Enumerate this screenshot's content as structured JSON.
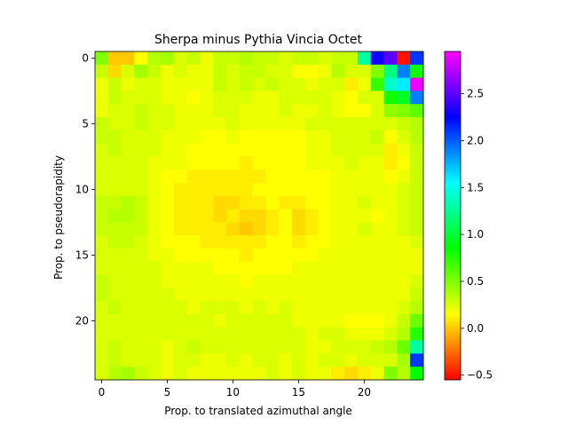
{
  "chart_data": {
    "type": "heatmap",
    "title": "Sherpa minus Pythia Vincia Octet",
    "xlabel": "Prop. to translated azimuthal angle",
    "ylabel": "Prop. to pseudorapidity",
    "n_cols": 25,
    "n_rows": 25,
    "xticks": [
      0,
      5,
      10,
      15,
      20
    ],
    "yticks": [
      0,
      5,
      10,
      15,
      20
    ],
    "colorbar": {
      "min": -0.55,
      "max": 2.95,
      "ticks": [
        -0.5,
        0.0,
        0.5,
        1.0,
        1.5,
        2.0,
        2.5
      ],
      "tick_labels": [
        "−0.5",
        "0.0",
        "0.5",
        "1.0",
        "1.5",
        "2.0",
        "2.5"
      ],
      "colormap": "gist_rainbow_r"
    },
    "values": [
      [
        0.5,
        0.0,
        0.0,
        0.15,
        0.35,
        0.4,
        0.25,
        0.3,
        0.2,
        0.3,
        0.3,
        0.35,
        0.3,
        0.3,
        0.25,
        0.3,
        0.3,
        0.25,
        0.3,
        0.3,
        1.3,
        2.3,
        2.5,
        -0.5,
        2.1
      ],
      [
        0.3,
        0.05,
        0.25,
        0.4,
        0.3,
        0.2,
        0.25,
        0.2,
        0.2,
        0.3,
        0.25,
        0.3,
        0.3,
        0.25,
        0.25,
        0.15,
        0.15,
        0.2,
        0.35,
        0.25,
        0.25,
        0.5,
        1.2,
        1.9,
        0.8
      ],
      [
        0.2,
        0.3,
        0.2,
        0.25,
        0.25,
        0.2,
        0.2,
        0.2,
        0.2,
        0.3,
        0.25,
        0.3,
        0.25,
        0.3,
        0.25,
        0.25,
        0.2,
        0.25,
        0.25,
        0.1,
        0.2,
        0.7,
        1.4,
        1.6,
        2.9
      ],
      [
        0.2,
        0.3,
        0.25,
        0.25,
        0.25,
        0.2,
        0.2,
        0.15,
        0.2,
        0.25,
        0.25,
        0.25,
        0.2,
        0.2,
        0.25,
        0.25,
        0.25,
        0.25,
        0.2,
        0.15,
        0.25,
        0.25,
        0.8,
        0.95,
        1.9
      ],
      [
        0.2,
        0.25,
        0.25,
        0.3,
        0.25,
        0.25,
        0.2,
        0.2,
        0.2,
        0.25,
        0.25,
        0.2,
        0.2,
        0.2,
        0.25,
        0.2,
        0.2,
        0.25,
        0.2,
        0.15,
        0.15,
        0.25,
        0.45,
        0.5,
        0.6
      ],
      [
        0.3,
        0.25,
        0.25,
        0.3,
        0.25,
        0.25,
        0.2,
        0.2,
        0.2,
        0.2,
        0.25,
        0.2,
        0.2,
        0.2,
        0.2,
        0.2,
        0.25,
        0.25,
        0.25,
        0.25,
        0.25,
        0.25,
        0.25,
        0.3,
        0.35
      ],
      [
        0.3,
        0.3,
        0.25,
        0.25,
        0.25,
        0.2,
        0.2,
        0.2,
        0.15,
        0.15,
        0.2,
        0.15,
        0.15,
        0.15,
        0.15,
        0.15,
        0.2,
        0.2,
        0.25,
        0.25,
        0.25,
        0.3,
        0.15,
        0.25,
        0.35
      ],
      [
        0.25,
        0.3,
        0.25,
        0.25,
        0.25,
        0.2,
        0.2,
        0.15,
        0.15,
        0.15,
        0.15,
        0.15,
        0.15,
        0.15,
        0.15,
        0.15,
        0.2,
        0.2,
        0.25,
        0.25,
        0.25,
        0.25,
        0.1,
        0.2,
        0.3
      ],
      [
        0.25,
        0.25,
        0.25,
        0.25,
        0.2,
        0.2,
        0.2,
        0.15,
        0.15,
        0.15,
        0.15,
        0.1,
        0.15,
        0.15,
        0.15,
        0.15,
        0.2,
        0.2,
        0.2,
        0.25,
        0.2,
        0.2,
        0.1,
        0.15,
        0.3
      ],
      [
        0.25,
        0.25,
        0.25,
        0.25,
        0.2,
        0.15,
        0.15,
        0.1,
        0.1,
        0.1,
        0.1,
        0.1,
        0.1,
        0.15,
        0.15,
        0.15,
        0.15,
        0.15,
        0.2,
        0.2,
        0.2,
        0.2,
        0.15,
        0.2,
        0.3
      ],
      [
        0.25,
        0.25,
        0.25,
        0.25,
        0.2,
        0.15,
        0.1,
        0.1,
        0.1,
        0.1,
        0.1,
        0.1,
        0.15,
        0.15,
        0.15,
        0.15,
        0.15,
        0.15,
        0.2,
        0.2,
        0.2,
        0.2,
        0.2,
        0.25,
        0.3
      ],
      [
        0.3,
        0.3,
        0.35,
        0.3,
        0.2,
        0.15,
        0.1,
        0.1,
        0.1,
        0.05,
        0.05,
        0.1,
        0.1,
        0.15,
        0.1,
        0.1,
        0.15,
        0.15,
        0.2,
        0.2,
        0.25,
        0.2,
        0.2,
        0.25,
        0.3
      ],
      [
        0.3,
        0.35,
        0.35,
        0.3,
        0.2,
        0.15,
        0.1,
        0.1,
        0.1,
        0.05,
        0.1,
        0.05,
        0.05,
        0.1,
        0.15,
        0.05,
        0.1,
        0.15,
        0.2,
        0.2,
        0.2,
        0.15,
        0.2,
        0.25,
        0.3
      ],
      [
        0.3,
        0.3,
        0.3,
        0.3,
        0.2,
        0.15,
        0.1,
        0.1,
        0.1,
        0.1,
        0.05,
        0.0,
        0.05,
        0.1,
        0.15,
        0.05,
        0.1,
        0.15,
        0.2,
        0.2,
        0.25,
        0.2,
        0.2,
        0.25,
        0.3
      ],
      [
        0.25,
        0.3,
        0.3,
        0.25,
        0.2,
        0.15,
        0.15,
        0.15,
        0.1,
        0.1,
        0.1,
        0.1,
        0.1,
        0.15,
        0.15,
        0.1,
        0.15,
        0.15,
        0.2,
        0.2,
        0.2,
        0.2,
        0.2,
        0.2,
        0.25
      ],
      [
        0.25,
        0.25,
        0.25,
        0.25,
        0.2,
        0.2,
        0.15,
        0.15,
        0.15,
        0.15,
        0.15,
        0.1,
        0.15,
        0.15,
        0.15,
        0.15,
        0.15,
        0.2,
        0.2,
        0.2,
        0.2,
        0.2,
        0.2,
        0.2,
        0.2
      ],
      [
        0.25,
        0.25,
        0.25,
        0.25,
        0.25,
        0.2,
        0.2,
        0.2,
        0.2,
        0.15,
        0.15,
        0.15,
        0.15,
        0.15,
        0.15,
        0.2,
        0.2,
        0.2,
        0.2,
        0.2,
        0.2,
        0.2,
        0.2,
        0.2,
        0.2
      ],
      [
        0.3,
        0.25,
        0.25,
        0.25,
        0.25,
        0.2,
        0.2,
        0.2,
        0.2,
        0.2,
        0.2,
        0.15,
        0.2,
        0.2,
        0.2,
        0.2,
        0.2,
        0.2,
        0.2,
        0.2,
        0.2,
        0.2,
        0.2,
        0.2,
        0.25
      ],
      [
        0.3,
        0.25,
        0.25,
        0.25,
        0.25,
        0.25,
        0.2,
        0.2,
        0.2,
        0.2,
        0.2,
        0.2,
        0.2,
        0.2,
        0.2,
        0.2,
        0.2,
        0.2,
        0.2,
        0.2,
        0.2,
        0.2,
        0.2,
        0.2,
        0.3
      ],
      [
        0.25,
        0.3,
        0.25,
        0.25,
        0.25,
        0.25,
        0.25,
        0.2,
        0.25,
        0.25,
        0.25,
        0.2,
        0.25,
        0.2,
        0.25,
        0.2,
        0.2,
        0.2,
        0.2,
        0.2,
        0.2,
        0.2,
        0.2,
        0.25,
        0.35
      ],
      [
        0.25,
        0.25,
        0.25,
        0.25,
        0.25,
        0.25,
        0.25,
        0.25,
        0.25,
        0.2,
        0.25,
        0.25,
        0.25,
        0.25,
        0.25,
        0.2,
        0.2,
        0.2,
        0.2,
        0.15,
        0.15,
        0.15,
        0.2,
        0.3,
        0.55
      ],
      [
        0.25,
        0.25,
        0.25,
        0.25,
        0.25,
        0.25,
        0.25,
        0.25,
        0.25,
        0.25,
        0.25,
        0.25,
        0.25,
        0.25,
        0.25,
        0.25,
        0.2,
        0.25,
        0.25,
        0.2,
        0.2,
        0.2,
        0.25,
        0.35,
        0.75
      ],
      [
        0.25,
        0.3,
        0.25,
        0.25,
        0.25,
        0.2,
        0.25,
        0.3,
        0.25,
        0.25,
        0.25,
        0.25,
        0.25,
        0.25,
        0.25,
        0.25,
        0.2,
        0.2,
        0.25,
        0.25,
        0.25,
        0.3,
        0.35,
        0.55,
        1.3
      ],
      [
        0.25,
        0.3,
        0.25,
        0.25,
        0.25,
        0.2,
        0.25,
        0.25,
        0.2,
        0.2,
        0.25,
        0.2,
        0.25,
        0.25,
        0.2,
        0.25,
        0.2,
        0.25,
        0.25,
        0.2,
        0.25,
        0.25,
        0.25,
        0.4,
        2.1
      ],
      [
        0.25,
        0.35,
        0.4,
        0.3,
        0.25,
        0.2,
        0.25,
        0.2,
        0.2,
        0.2,
        0.2,
        0.2,
        0.2,
        0.25,
        0.2,
        0.25,
        0.2,
        0.2,
        0.1,
        0.05,
        0.1,
        0.2,
        0.5,
        0.35,
        0.85
      ]
    ]
  }
}
